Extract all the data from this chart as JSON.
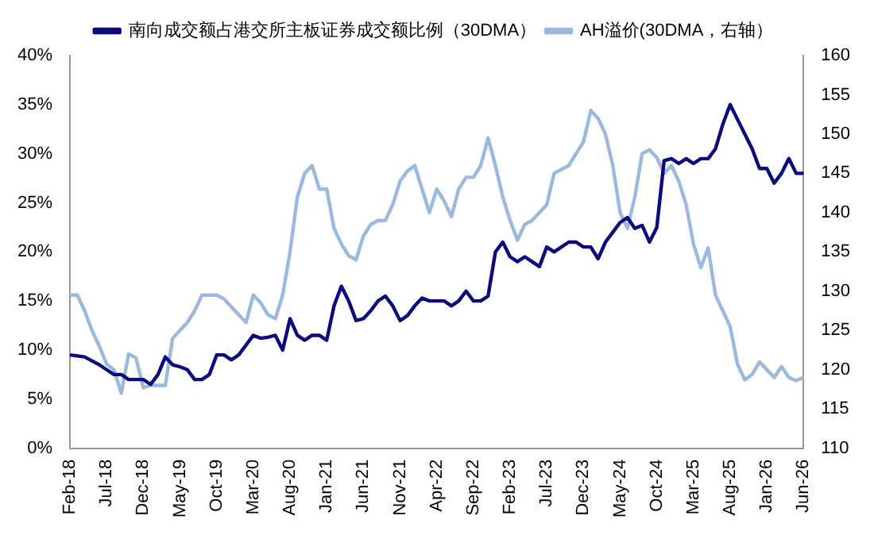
{
  "chart_data": {
    "type": "line",
    "categories": [
      "Feb-18",
      null,
      null,
      null,
      null,
      "Jul-18",
      null,
      null,
      null,
      null,
      "Dec-18",
      null,
      null,
      null,
      null,
      "May-19",
      null,
      null,
      null,
      null,
      "Oct-19",
      null,
      null,
      null,
      null,
      "Mar-20",
      null,
      null,
      null,
      null,
      "Aug-20",
      null,
      null,
      null,
      null,
      "Jan-21",
      null,
      null,
      null,
      null,
      "Jun-21",
      null,
      null,
      null,
      null,
      "Nov-21",
      null,
      null,
      null,
      null,
      "Apr-22",
      null,
      null,
      null,
      null,
      "Sep-22",
      null,
      null,
      null,
      null,
      "Feb-23",
      null,
      null,
      null,
      null,
      "Jul-23",
      null,
      null,
      null,
      null,
      "Dec-23",
      null,
      null,
      null,
      null,
      "May-24",
      null,
      null,
      null,
      null,
      "Oct-24",
      null,
      null,
      null,
      null,
      "Mar-25",
      null,
      null,
      null,
      null,
      "Aug-25",
      null,
      null,
      null,
      null,
      "Jan-26",
      null,
      null,
      null,
      null,
      "Jun-26"
    ],
    "series": [
      {
        "name": "南向成交额占港交所主板证券成交额比例（30DMA）",
        "color": "#0b0b7f",
        "values": [
          9.5,
          9.4,
          9.3,
          8.9,
          8.5,
          8.0,
          7.5,
          7.5,
          7.0,
          7.0,
          7.0,
          6.5,
          7.5,
          9.3,
          8.5,
          8.3,
          8.0,
          7.0,
          7.0,
          7.5,
          9.5,
          9.5,
          9.0,
          9.5,
          10.5,
          11.5,
          11.2,
          11.3,
          11.5,
          10.0,
          13.2,
          11.5,
          11.0,
          11.5,
          11.5,
          11.0,
          14.5,
          16.5,
          15.0,
          13.0,
          13.2,
          14.0,
          15.0,
          15.5,
          14.5,
          13.0,
          13.5,
          14.5,
          15.3,
          15.0,
          15.0,
          15.0,
          14.5,
          15.0,
          16.0,
          15.0,
          15.0,
          15.5,
          20.0,
          21.0,
          19.5,
          19.0,
          19.5,
          19.0,
          18.5,
          20.5,
          20.0,
          20.5,
          21.0,
          21.0,
          20.5,
          20.5,
          19.3,
          21.0,
          22.0,
          23.0,
          23.5,
          22.4,
          22.7,
          21.0,
          22.5,
          29.3,
          29.5,
          29.0,
          29.5,
          29.0,
          29.5,
          29.5,
          30.5,
          33.0,
          35.0,
          33.5,
          32.0,
          30.5,
          28.5,
          28.5,
          27.0,
          28.0,
          29.5,
          28.0,
          28.0
        ]
      },
      {
        "name": "AH溢价(30DMA，右轴）",
        "color": "#9bb9de",
        "axis": "y2",
        "values": [
          129.5,
          129.5,
          127.5,
          125,
          123,
          120.7,
          120,
          117,
          122,
          121.5,
          117.7,
          118,
          118,
          118,
          124,
          125,
          126,
          127.5,
          129.5,
          129.5,
          129.5,
          129,
          128,
          127,
          126,
          129.5,
          128.5,
          127,
          126.5,
          129.5,
          135,
          142,
          145,
          146,
          143,
          143,
          138,
          136,
          134.5,
          134,
          137,
          138.5,
          139,
          139,
          141,
          144,
          145.3,
          146,
          143,
          140,
          143,
          141.5,
          139.5,
          143,
          144.5,
          144.5,
          146,
          149.5,
          146,
          142,
          139,
          136.5,
          138.5,
          139,
          140,
          141,
          145,
          145.5,
          146,
          147.5,
          149,
          153,
          152,
          150,
          146,
          140,
          138,
          142,
          147.5,
          148,
          147,
          145,
          146,
          144,
          141,
          136,
          133,
          135.5,
          129.5,
          127.5,
          125.5,
          120.7,
          118.7,
          119.4,
          121,
          120,
          119,
          120.4,
          119,
          118.6,
          119
        ]
      }
    ],
    "ylim": [
      0,
      40
    ],
    "yticks": [
      {
        "value": 0,
        "label": "0%"
      },
      {
        "value": 5,
        "label": "5%"
      },
      {
        "value": 10,
        "label": "10%"
      },
      {
        "value": 15,
        "label": "15%"
      },
      {
        "value": 20,
        "label": "20%"
      },
      {
        "value": 25,
        "label": "25%"
      },
      {
        "value": 30,
        "label": "30%"
      },
      {
        "value": 35,
        "label": "35%"
      },
      {
        "value": 40,
        "label": "40%"
      }
    ],
    "y2lim": [
      110,
      160
    ],
    "y2ticks": [
      110,
      115,
      120,
      125,
      130,
      135,
      140,
      145,
      150,
      155,
      160
    ],
    "legend": "top",
    "grid": false,
    "marker": "none",
    "line_style": "solid"
  }
}
